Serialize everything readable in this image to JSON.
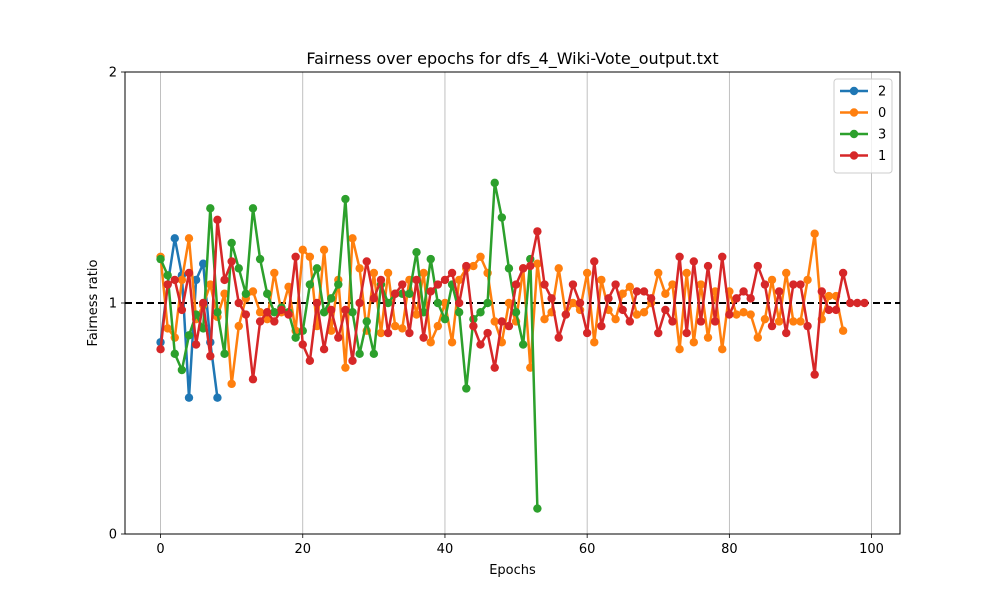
{
  "chart_data": {
    "type": "line",
    "title": "Fairness over epochs for dfs_4_Wiki-Vote_output.txt",
    "xlabel": "Epochs",
    "ylabel": "Fairness ratio",
    "xlim": [
      -5,
      104
    ],
    "ylim": [
      0,
      2
    ],
    "xticks": [
      0,
      20,
      40,
      60,
      80,
      100
    ],
    "yticks": [
      0,
      1,
      2
    ],
    "grid": "vertical",
    "legend_position": "top-right",
    "reference_line": {
      "y": 1.0,
      "style": "dashed",
      "color": "#000000"
    },
    "series": [
      {
        "name": "2",
        "color": "#1f77b4",
        "x": [
          0,
          1,
          2,
          3,
          4,
          5,
          6,
          7,
          8
        ],
        "y": [
          0.83,
          1.08,
          1.28,
          1.12,
          0.59,
          1.1,
          1.17,
          0.83,
          0.59
        ]
      },
      {
        "name": "0",
        "color": "#ff7f0e",
        "x": [
          0,
          1,
          2,
          3,
          4,
          5,
          6,
          7,
          8,
          9,
          10,
          11,
          12,
          13,
          14,
          15,
          16,
          17,
          18,
          19,
          20,
          21,
          22,
          23,
          24,
          25,
          26,
          27,
          28,
          29,
          30,
          31,
          32,
          33,
          34,
          35,
          36,
          37,
          38,
          39,
          40,
          41,
          42,
          43,
          44,
          45,
          46,
          47,
          48,
          49,
          50,
          51,
          52,
          53,
          54,
          55,
          56,
          57,
          58,
          59,
          60,
          61,
          62,
          63,
          64,
          65,
          66,
          67,
          68,
          69,
          70,
          71,
          72,
          73,
          74,
          75,
          76,
          77,
          78,
          79,
          80,
          81,
          82,
          83,
          84,
          85,
          86,
          87,
          88,
          89,
          90,
          91,
          92,
          93,
          94,
          95,
          96
        ],
        "y": [
          1.2,
          0.89,
          0.85,
          1.1,
          1.28,
          0.93,
          0.99,
          1.08,
          0.94,
          1.04,
          0.65,
          0.9,
          1.02,
          1.05,
          0.96,
          0.93,
          1.13,
          0.96,
          1.07,
          0.88,
          1.23,
          1.2,
          0.9,
          1.23,
          0.88,
          1.1,
          0.72,
          1.28,
          1.15,
          0.88,
          1.13,
          0.87,
          1.13,
          0.9,
          0.89,
          1.1,
          0.95,
          1.13,
          0.83,
          0.9,
          1.0,
          0.83,
          1.1,
          1.15,
          1.16,
          1.2,
          1.13,
          0.92,
          0.83,
          1.0,
          0.92,
          1.15,
          0.72,
          1.17,
          0.93,
          0.96,
          1.15,
          0.95,
          1.0,
          0.97,
          1.13,
          0.83,
          1.1,
          0.97,
          0.93,
          1.04,
          1.07,
          0.95,
          0.96,
          1.0,
          1.13,
          1.04,
          1.08,
          0.8,
          1.13,
          0.83,
          1.08,
          0.85,
          1.05,
          0.8,
          1.05,
          0.95,
          0.96,
          0.95,
          0.85,
          0.93,
          1.1,
          0.92,
          1.13,
          0.92,
          0.92,
          1.1,
          1.3,
          0.93,
          1.03,
          1.03,
          0.88
        ]
      },
      {
        "name": "3",
        "color": "#2ca02c",
        "x": [
          0,
          1,
          2,
          3,
          4,
          5,
          6,
          7,
          8,
          9,
          10,
          11,
          12,
          13,
          14,
          15,
          16,
          17,
          18,
          19,
          20,
          21,
          22,
          23,
          24,
          25,
          26,
          27,
          28,
          29,
          30,
          31,
          32,
          33,
          34,
          35,
          36,
          37,
          38,
          39,
          40,
          41,
          42,
          43,
          44,
          45,
          46,
          47,
          48,
          49,
          50,
          51,
          52,
          53
        ],
        "y": [
          1.19,
          1.12,
          0.78,
          0.71,
          0.86,
          0.95,
          0.89,
          1.41,
          0.96,
          0.78,
          1.26,
          1.15,
          1.04,
          1.41,
          1.19,
          1.04,
          0.96,
          0.98,
          0.96,
          0.85,
          0.88,
          1.08,
          1.15,
          0.96,
          1.02,
          1.08,
          1.45,
          0.96,
          0.78,
          0.92,
          0.78,
          1.08,
          1.0,
          1.04,
          1.04,
          1.04,
          1.22,
          0.96,
          1.19,
          1.0,
          0.93,
          1.08,
          0.96,
          0.63,
          0.93,
          0.96,
          1.0,
          1.52,
          1.37,
          1.15,
          0.96,
          0.82,
          1.19,
          0.11
        ]
      },
      {
        "name": "1",
        "color": "#d62728",
        "x": [
          0,
          1,
          2,
          3,
          4,
          5,
          6,
          7,
          8,
          9,
          10,
          11,
          12,
          13,
          14,
          15,
          16,
          17,
          18,
          19,
          20,
          21,
          22,
          23,
          24,
          25,
          26,
          27,
          28,
          29,
          30,
          31,
          32,
          33,
          34,
          35,
          36,
          37,
          38,
          39,
          40,
          41,
          42,
          43,
          44,
          45,
          46,
          47,
          48,
          49,
          50,
          51,
          52,
          53,
          54,
          55,
          56,
          57,
          58,
          59,
          60,
          61,
          62,
          63,
          64,
          65,
          66,
          67,
          68,
          69,
          70,
          71,
          72,
          73,
          74,
          75,
          76,
          77,
          78,
          79,
          80,
          81,
          82,
          83,
          84,
          85,
          86,
          87,
          88,
          89,
          90,
          91,
          92,
          93,
          94,
          95,
          96,
          97,
          98,
          99
        ],
        "y": [
          0.8,
          1.08,
          1.1,
          0.97,
          1.13,
          0.82,
          1.0,
          0.77,
          1.36,
          1.1,
          1.18,
          1.0,
          0.95,
          0.67,
          0.92,
          0.96,
          0.92,
          0.97,
          0.95,
          1.2,
          0.82,
          0.75,
          1.0,
          0.8,
          0.97,
          0.85,
          0.97,
          0.75,
          1.0,
          1.18,
          1.02,
          1.1,
          0.87,
          1.04,
          1.08,
          0.87,
          1.1,
          0.85,
          1.05,
          1.08,
          1.1,
          1.13,
          1.0,
          1.16,
          0.9,
          0.82,
          0.87,
          0.72,
          0.92,
          0.9,
          1.08,
          1.15,
          1.16,
          1.31,
          1.08,
          1.02,
          0.85,
          0.95,
          1.08,
          1.0,
          0.87,
          1.18,
          0.9,
          1.02,
          1.08,
          0.97,
          0.92,
          1.05,
          1.05,
          1.02,
          0.87,
          0.97,
          0.92,
          1.2,
          0.87,
          1.18,
          0.92,
          1.16,
          0.92,
          1.2,
          0.95,
          1.02,
          1.05,
          1.02,
          1.16,
          1.08,
          0.9,
          1.05,
          0.87,
          1.08,
          1.08,
          0.9,
          0.69,
          1.05,
          0.97,
          0.97,
          1.13,
          1.0,
          1.0,
          1.0
        ]
      }
    ]
  }
}
